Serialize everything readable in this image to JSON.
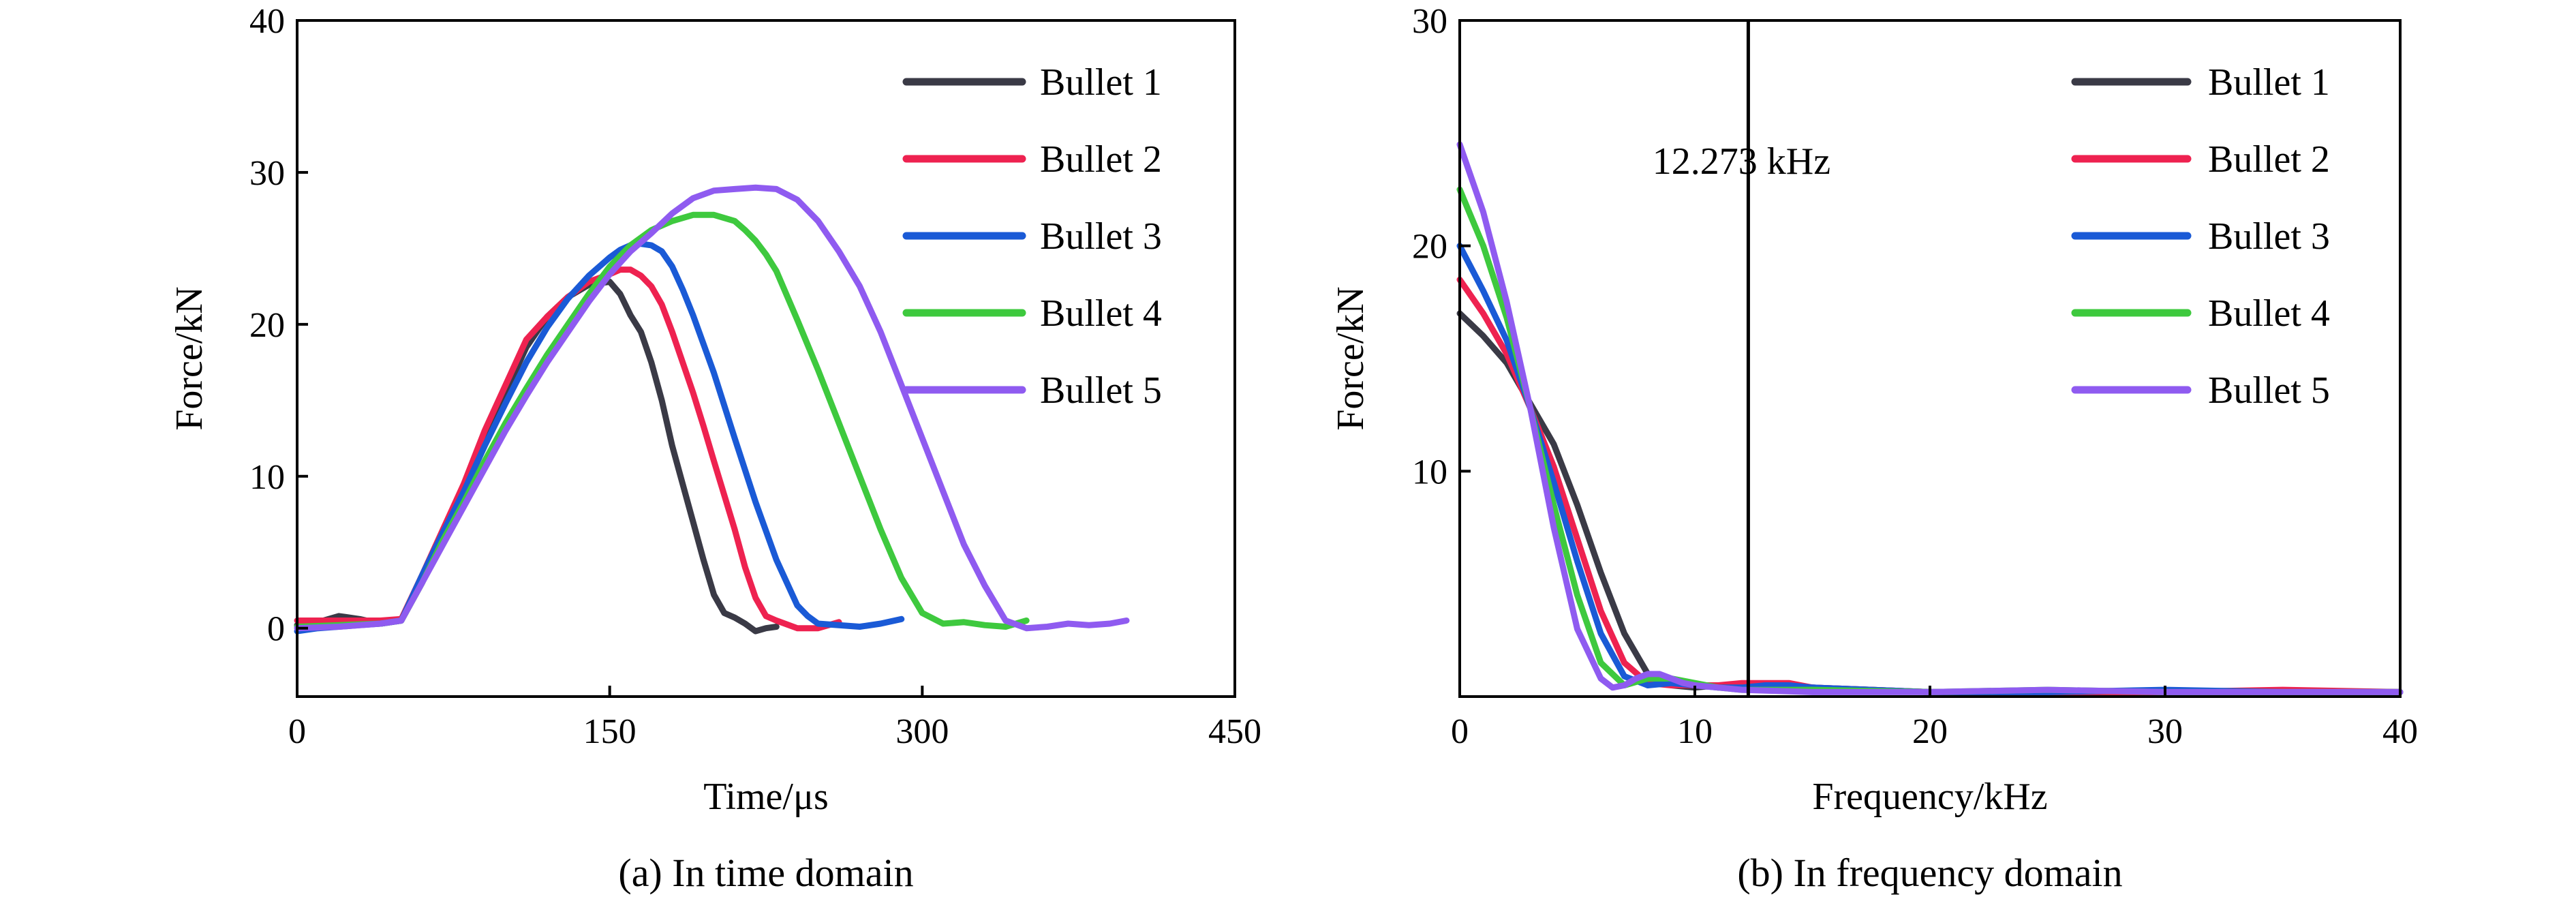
{
  "chart_data": [
    {
      "type": "line",
      "caption": "(a) In time domain",
      "xlabel": "Time/μs",
      "ylabel": "Force/kN",
      "xlim": [
        0,
        450
      ],
      "ylim": [
        -4.5,
        40
      ],
      "xticks": [
        0,
        150,
        300,
        450
      ],
      "yticks": [
        0,
        10,
        20,
        30,
        40
      ],
      "legend_position": "top-right",
      "series": [
        {
          "name": "Bullet 1",
          "color": "#3a3a46",
          "x": [
            0,
            10,
            20,
            30,
            40,
            50,
            60,
            70,
            80,
            90,
            100,
            110,
            120,
            130,
            140,
            150,
            155,
            160,
            165,
            170,
            175,
            180,
            185,
            190,
            195,
            200,
            205,
            210,
            215,
            220,
            225,
            230
          ],
          "y": [
            0.2,
            0.4,
            0.8,
            0.6,
            0.3,
            0.5,
            3,
            6,
            9,
            12.5,
            15.5,
            18.5,
            20.5,
            21.8,
            22.6,
            22.8,
            22,
            20.6,
            19.5,
            17.5,
            15,
            12,
            9.5,
            7,
            4.5,
            2.2,
            1,
            0.7,
            0.3,
            -0.2,
            0,
            0.1
          ]
        },
        {
          "name": "Bullet 2",
          "color": "#ee2250",
          "x": [
            0,
            10,
            20,
            30,
            40,
            50,
            60,
            70,
            80,
            90,
            100,
            110,
            120,
            130,
            140,
            150,
            155,
            160,
            165,
            170,
            175,
            180,
            185,
            190,
            195,
            200,
            210,
            215,
            220,
            225,
            230,
            240,
            250,
            260
          ],
          "y": [
            0.5,
            0.5,
            0.5,
            0.5,
            0.5,
            0.6,
            3.5,
            6.5,
            9.5,
            13,
            16,
            19,
            20.5,
            21.8,
            22.8,
            23.3,
            23.6,
            23.6,
            23.2,
            22.5,
            21.3,
            19.5,
            17.5,
            15.5,
            13.3,
            11,
            6.5,
            4,
            2,
            0.8,
            0.5,
            0,
            0,
            0.4
          ]
        },
        {
          "name": "Bullet 3",
          "color": "#1a5ad6",
          "x": [
            0,
            10,
            20,
            30,
            40,
            50,
            60,
            70,
            80,
            90,
            100,
            110,
            120,
            130,
            140,
            150,
            155,
            160,
            165,
            170,
            175,
            180,
            185,
            190,
            195,
            200,
            210,
            220,
            230,
            240,
            245,
            250,
            260,
            270,
            280,
            290
          ],
          "y": [
            -0.2,
            0,
            0.1,
            0.2,
            0.3,
            0.5,
            3.5,
            6.3,
            9,
            12,
            14.8,
            17.5,
            19.8,
            21.7,
            23.2,
            24.4,
            24.9,
            25.2,
            25.3,
            25.2,
            24.8,
            23.8,
            22.3,
            20.6,
            18.7,
            16.8,
            12.5,
            8.3,
            4.5,
            1.5,
            0.8,
            0.3,
            0.2,
            0.1,
            0.3,
            0.6
          ]
        },
        {
          "name": "Bullet 4",
          "color": "#3ec93e",
          "x": [
            0,
            20,
            40,
            50,
            60,
            70,
            80,
            90,
            100,
            110,
            120,
            130,
            140,
            150,
            160,
            170,
            180,
            190,
            200,
            210,
            215,
            220,
            225,
            230,
            240,
            250,
            260,
            270,
            280,
            290,
            300,
            310,
            320,
            330,
            340,
            350
          ],
          "y": [
            0.1,
            0.2,
            0.3,
            0.5,
            3,
            5.8,
            8.3,
            11,
            13.5,
            15.8,
            18,
            20,
            22,
            23.8,
            25.2,
            26.2,
            26.8,
            27.2,
            27.2,
            26.8,
            26.2,
            25.5,
            24.6,
            23.5,
            20.3,
            17,
            13.5,
            10,
            6.5,
            3.3,
            1,
            0.3,
            0.4,
            0.2,
            0.1,
            0.5
          ]
        },
        {
          "name": "Bullet 5",
          "color": "#8f5bf0",
          "x": [
            0,
            20,
            40,
            50,
            60,
            70,
            80,
            90,
            100,
            110,
            120,
            130,
            140,
            150,
            160,
            170,
            180,
            190,
            200,
            210,
            220,
            230,
            240,
            250,
            260,
            270,
            280,
            290,
            300,
            310,
            320,
            330,
            340,
            350,
            360,
            370,
            380,
            390,
            398
          ],
          "y": [
            0,
            0.1,
            0.3,
            0.5,
            3,
            5.5,
            8,
            10.5,
            13,
            15.3,
            17.5,
            19.5,
            21.5,
            23.3,
            24.8,
            26,
            27.3,
            28.3,
            28.8,
            28.9,
            29,
            28.9,
            28.2,
            26.8,
            24.8,
            22.5,
            19.5,
            16,
            12.5,
            9,
            5.5,
            2.8,
            0.5,
            0,
            0.1,
            0.3,
            0.2,
            0.3,
            0.5
          ]
        }
      ]
    },
    {
      "type": "line",
      "caption": "(b) In frequency domain",
      "xlabel": "Frequency/kHz",
      "ylabel": "Force/kN",
      "xlim": [
        0,
        40
      ],
      "ylim": [
        0,
        30
      ],
      "xticks": [
        0,
        10,
        20,
        30,
        40
      ],
      "yticks": [
        10,
        20,
        30
      ],
      "legend_position": "top-right",
      "annotation": {
        "x": 12.273,
        "label": "12.273 kHz"
      },
      "series": [
        {
          "name": "Bullet 1",
          "color": "#3a3a46",
          "x": [
            0,
            1,
            2,
            3,
            4,
            5,
            6,
            7,
            8,
            9,
            10,
            11,
            12,
            13,
            14,
            15,
            20,
            25,
            30,
            35,
            40
          ],
          "y": [
            17,
            16,
            14.8,
            13,
            11.2,
            8.5,
            5.5,
            2.8,
            1,
            0.5,
            0.4,
            0.5,
            0.5,
            0.4,
            0.5,
            0.4,
            0.2,
            0.2,
            0.2,
            0.2,
            0.2
          ]
        },
        {
          "name": "Bullet 2",
          "color": "#ee2250",
          "x": [
            0,
            1,
            2,
            3,
            4,
            5,
            6,
            7,
            8,
            9,
            10,
            11,
            12,
            13,
            14,
            15,
            20,
            25,
            30,
            35,
            40
          ],
          "y": [
            18.5,
            17,
            15.2,
            12.8,
            10.2,
            7,
            3.8,
            1.5,
            0.6,
            0.5,
            0.5,
            0.5,
            0.6,
            0.6,
            0.6,
            0.4,
            0.2,
            0.2,
            0.2,
            0.3,
            0.2
          ]
        },
        {
          "name": "Bullet 3",
          "color": "#1a5ad6",
          "x": [
            0,
            1,
            2,
            3,
            4,
            5,
            6,
            7,
            8,
            9,
            10,
            11,
            12,
            13,
            14,
            15,
            20,
            25,
            30,
            35,
            40
          ],
          "y": [
            20,
            18,
            15.8,
            12.8,
            9.5,
            6,
            2.8,
            0.9,
            0.5,
            0.6,
            0.5,
            0.4,
            0.4,
            0.5,
            0.5,
            0.4,
            0.2,
            0.2,
            0.3,
            0.2,
            0.2
          ]
        },
        {
          "name": "Bullet 4",
          "color": "#3ec93e",
          "x": [
            0,
            1,
            2,
            3,
            4,
            5,
            6,
            7,
            8,
            9,
            10,
            11,
            12,
            13,
            14,
            15,
            20,
            25,
            30,
            35,
            40
          ],
          "y": [
            22.5,
            20,
            16.8,
            12.8,
            8.5,
            4.5,
            1.5,
            0.5,
            0.8,
            0.8,
            0.6,
            0.4,
            0.3,
            0.3,
            0.3,
            0.3,
            0.2,
            0.3,
            0.2,
            0.2,
            0.2
          ]
        },
        {
          "name": "Bullet 5",
          "color": "#8f5bf0",
          "x": [
            0,
            1,
            2,
            3,
            4,
            5,
            6,
            6.5,
            7,
            7.5,
            8,
            8.5,
            9,
            9.5,
            10,
            11,
            12,
            15,
            20,
            25,
            30,
            35,
            40
          ],
          "y": [
            24.5,
            21.5,
            17.5,
            12.8,
            7.5,
            3,
            0.8,
            0.4,
            0.5,
            0.8,
            1,
            1,
            0.8,
            0.6,
            0.5,
            0.4,
            0.3,
            0.2,
            0.2,
            0.3,
            0.2,
            0.2,
            0.2
          ]
        }
      ]
    }
  ]
}
